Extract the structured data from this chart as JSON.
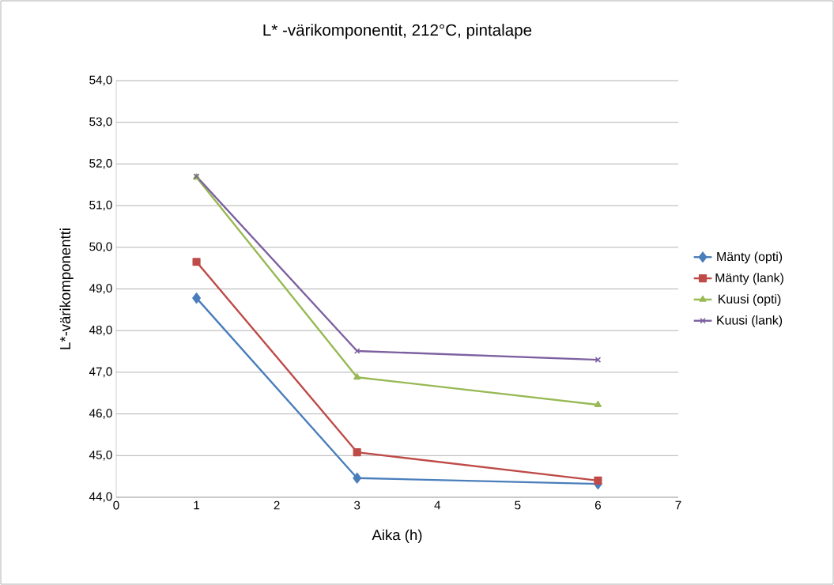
{
  "chart_data": {
    "type": "line",
    "title": "L* -värikomponentit, 212°C, pintalape",
    "xlabel": "Aika (h)",
    "ylabel": "L*-värikomponentti",
    "x": [
      1,
      3,
      6
    ],
    "series": [
      {
        "name": "Mänty (opti)",
        "color": "#4a7ebb",
        "marker": "diamond",
        "values": [
          48.78,
          44.46,
          44.32
        ]
      },
      {
        "name": "Mänty (lank)",
        "color": "#be4b48",
        "marker": "square",
        "values": [
          49.65,
          45.08,
          44.4
        ]
      },
      {
        "name": "Kuusi (opti)",
        "color": "#98b954",
        "marker": "triangle",
        "values": [
          51.68,
          46.88,
          46.22
        ]
      },
      {
        "name": "Kuusi (lank)",
        "color": "#7d60a0",
        "marker": "cross",
        "values": [
          51.7,
          47.51,
          47.3
        ]
      }
    ],
    "xlim": [
      0,
      7
    ],
    "xticks": [
      0,
      1,
      2,
      3,
      4,
      5,
      6,
      7
    ],
    "ylim": [
      44,
      54
    ],
    "yticks": [
      {
        "value": 44,
        "label": "44,0"
      },
      {
        "value": 45,
        "label": "45,0"
      },
      {
        "value": 46,
        "label": "46,0"
      },
      {
        "value": 47,
        "label": "47,0"
      },
      {
        "value": 48,
        "label": "48,0"
      },
      {
        "value": 49,
        "label": "49,0"
      },
      {
        "value": 50,
        "label": "50,0"
      },
      {
        "value": 51,
        "label": "51,0"
      },
      {
        "value": 52,
        "label": "52,0"
      },
      {
        "value": 53,
        "label": "53,0"
      },
      {
        "value": 54,
        "label": "54,0"
      }
    ],
    "grid": "y",
    "legend": "right",
    "line_style": "solid"
  }
}
